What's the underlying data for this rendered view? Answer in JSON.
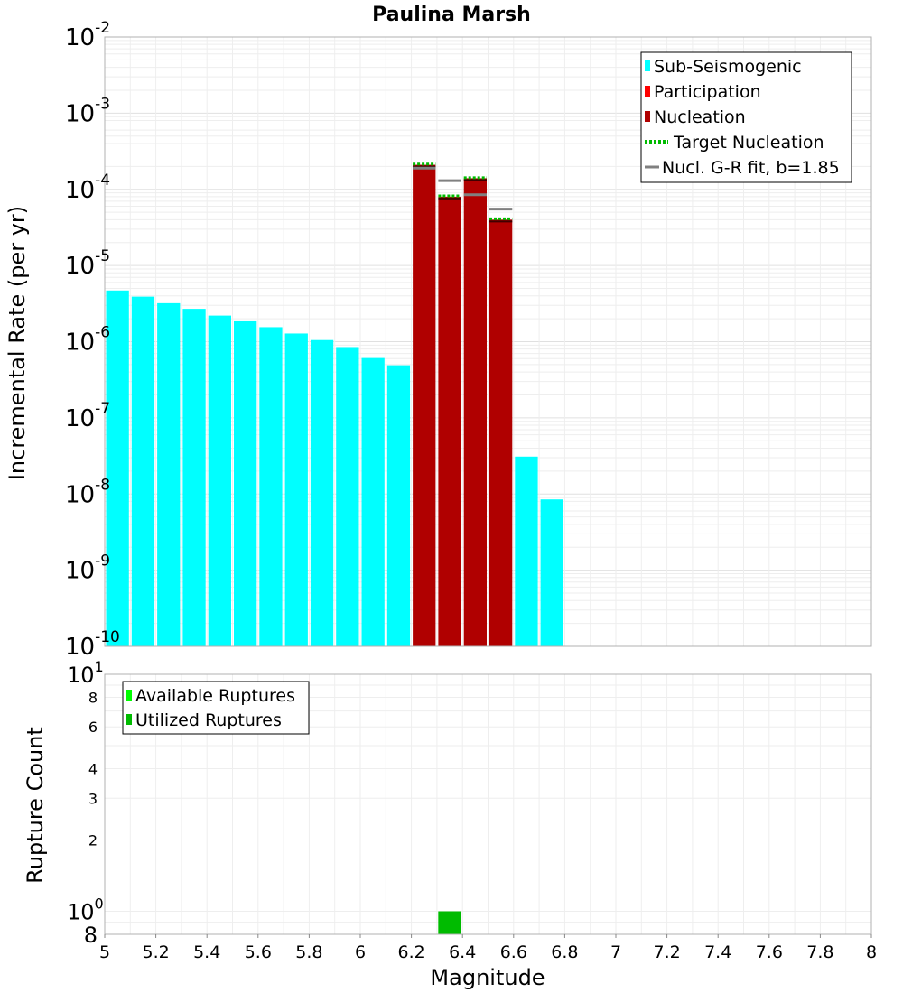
{
  "chart_data": [
    {
      "id": "rate",
      "type": "bar",
      "title": "Paulina Marsh",
      "ylabel": "Incremental Rate (per yr)",
      "xlabel": "",
      "scale": "log",
      "xlim": [
        5,
        8
      ],
      "ylim_exp": [
        -10,
        -2
      ],
      "y_tick_labels": [
        {
          "exp": -10,
          "label": "10",
          "sup": "-10"
        },
        {
          "exp": -9,
          "label": "10",
          "sup": "-9"
        },
        {
          "exp": -8,
          "label": "10",
          "sup": "-8"
        },
        {
          "exp": -7,
          "label": "10",
          "sup": "-7"
        },
        {
          "exp": -6,
          "label": "10",
          "sup": "-6"
        },
        {
          "exp": -5,
          "label": "10",
          "sup": "-5"
        },
        {
          "exp": -4,
          "label": "10",
          "sup": "-4"
        },
        {
          "exp": -3,
          "label": "10",
          "sup": "-3"
        },
        {
          "exp": -2,
          "label": "10",
          "sup": "-2"
        }
      ],
      "bin_width": 0.1,
      "series": [
        {
          "name": "Sub-Seismogenic",
          "color": "#00ffff",
          "points": [
            {
              "x": 5.05,
              "y": 4.7e-06
            },
            {
              "x": 5.15,
              "y": 3.9e-06
            },
            {
              "x": 5.25,
              "y": 3.2e-06
            },
            {
              "x": 5.35,
              "y": 2.7e-06
            },
            {
              "x": 5.45,
              "y": 2.2e-06
            },
            {
              "x": 5.55,
              "y": 1.85e-06
            },
            {
              "x": 5.65,
              "y": 1.55e-06
            },
            {
              "x": 5.75,
              "y": 1.28e-06
            },
            {
              "x": 5.85,
              "y": 1.05e-06
            },
            {
              "x": 5.95,
              "y": 8.5e-07
            },
            {
              "x": 6.05,
              "y": 6.1e-07
            },
            {
              "x": 6.15,
              "y": 4.9e-07
            },
            {
              "x": 6.65,
              "y": 3.1e-08
            },
            {
              "x": 6.75,
              "y": 8.5e-09
            }
          ]
        },
        {
          "name": "Participation",
          "color": "#ff0000",
          "points": [
            {
              "x": 6.25,
              "y": 0.00021
            },
            {
              "x": 6.35,
              "y": 8e-05
            },
            {
              "x": 6.45,
              "y": 0.00014
            },
            {
              "x": 6.55,
              "y": 4e-05
            }
          ]
        },
        {
          "name": "Nucleation",
          "color": "#b00000",
          "points": [
            {
              "x": 6.25,
              "y": 0.00021
            },
            {
              "x": 6.35,
              "y": 8e-05
            },
            {
              "x": 6.45,
              "y": 0.00014
            },
            {
              "x": 6.55,
              "y": 4e-05
            }
          ]
        },
        {
          "name": "Target Nucleation",
          "color": "#00bb00",
          "style": "dotted",
          "points": [
            {
              "x": 6.25,
              "y": 0.000215
            },
            {
              "x": 6.35,
              "y": 8.2e-05
            },
            {
              "x": 6.45,
              "y": 0.000142
            },
            {
              "x": 6.55,
              "y": 4.1e-05
            }
          ]
        },
        {
          "name": "Nucl. G-R fit, b=1.85",
          "color": "#808080",
          "points": [
            {
              "x": 6.25,
              "y": 0.00019
            },
            {
              "x": 6.35,
              "y": 0.00013
            },
            {
              "x": 6.45,
              "y": 8.5e-05
            },
            {
              "x": 6.55,
              "y": 5.5e-05
            }
          ]
        }
      ],
      "legend": {
        "position": "top-right",
        "entries": [
          {
            "label": "Sub-Seismogenic",
            "color": "#00ffff",
            "style": "box"
          },
          {
            "label": "Participation",
            "color": "#ff0000",
            "style": "box"
          },
          {
            "label": "Nucleation",
            "color": "#b00000",
            "style": "box"
          },
          {
            "label": "Target Nucleation",
            "color": "#00bb00",
            "style": "dotted"
          },
          {
            "label": "Nucl. G-R fit, b=1.85",
            "color": "#808080",
            "style": "line"
          }
        ]
      }
    },
    {
      "id": "count",
      "type": "bar",
      "title": "",
      "ylabel": "Rupture Count",
      "xlabel": "Magnitude",
      "scale": "log",
      "xlim": [
        5,
        8
      ],
      "ylim": [
        0.8,
        10
      ],
      "x_ticks": [
        "5",
        "5.2",
        "5.4",
        "5.6",
        "5.8",
        "6",
        "6.2",
        "6.4",
        "6.6",
        "6.8",
        "7",
        "7.2",
        "7.4",
        "7.6",
        "7.8",
        "8"
      ],
      "y_tick_labels": [
        {
          "value": 10,
          "label": "10",
          "sup": "1",
          "size": "large"
        },
        {
          "value": 8,
          "label": "8",
          "sup": "",
          "size": "small"
        },
        {
          "value": 6,
          "label": "6",
          "sup": "",
          "size": "small"
        },
        {
          "value": 4,
          "label": "4",
          "sup": "",
          "size": "small"
        },
        {
          "value": 3,
          "label": "3",
          "sup": "",
          "size": "small"
        },
        {
          "value": 2,
          "label": "2",
          "sup": "",
          "size": "small"
        },
        {
          "value": 1,
          "label": "10",
          "sup": "0",
          "size": "large"
        },
        {
          "value": 0.8,
          "label": "8",
          "sup": "",
          "size": "large"
        }
      ],
      "series": [
        {
          "name": "Available Ruptures",
          "color": "#00ff00",
          "points": [
            {
              "x": 6.35,
              "y": 1
            }
          ]
        },
        {
          "name": "Utilized Ruptures",
          "color": "#00bb00",
          "points": [
            {
              "x": 6.35,
              "y": 1
            }
          ]
        }
      ],
      "legend": {
        "position": "top-left",
        "entries": [
          {
            "label": "Available Ruptures",
            "color": "#00ff00",
            "style": "box"
          },
          {
            "label": "Utilized Ruptures",
            "color": "#00bb00",
            "style": "box"
          }
        ]
      }
    }
  ]
}
